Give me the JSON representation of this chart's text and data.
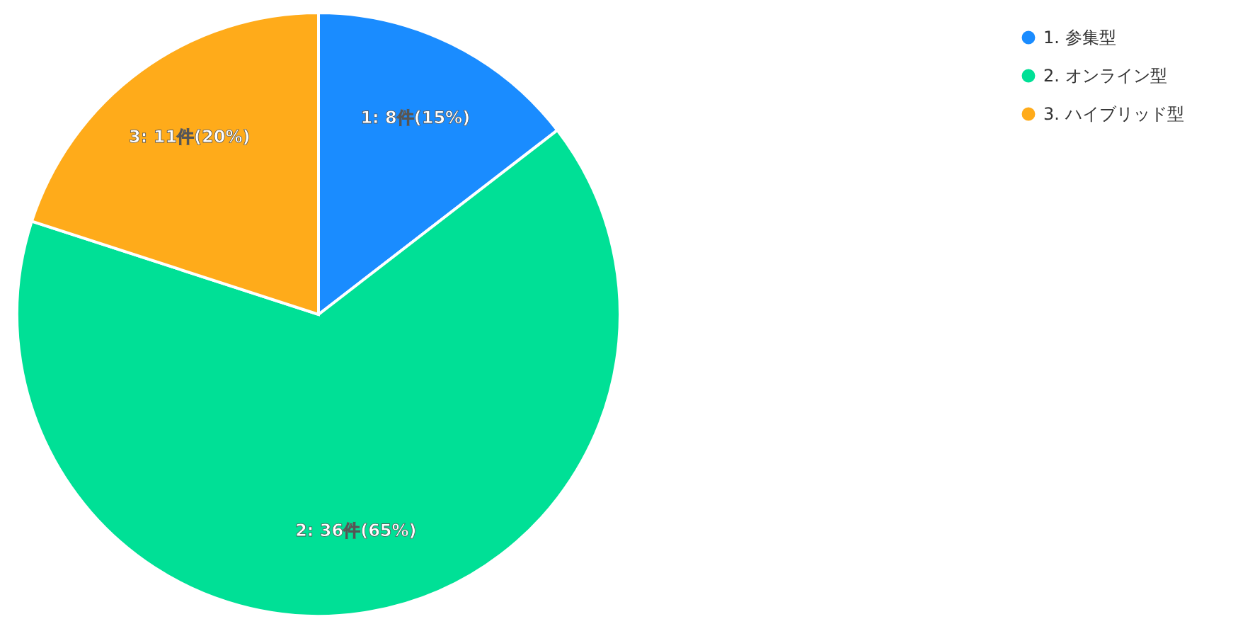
{
  "chart_data": {
    "type": "pie",
    "categories": [
      "1. 参集型",
      "2. オンライン型",
      "3. ハイブリッド型"
    ],
    "values": [
      8,
      36,
      11
    ],
    "colors": [
      "#1a8cff",
      "#00e096",
      "#ffab1a"
    ],
    "value_labels": [
      "1: 8件(15%)",
      "2: 36件(65%)",
      "3: 11件(20%)"
    ],
    "legend": "top right"
  }
}
